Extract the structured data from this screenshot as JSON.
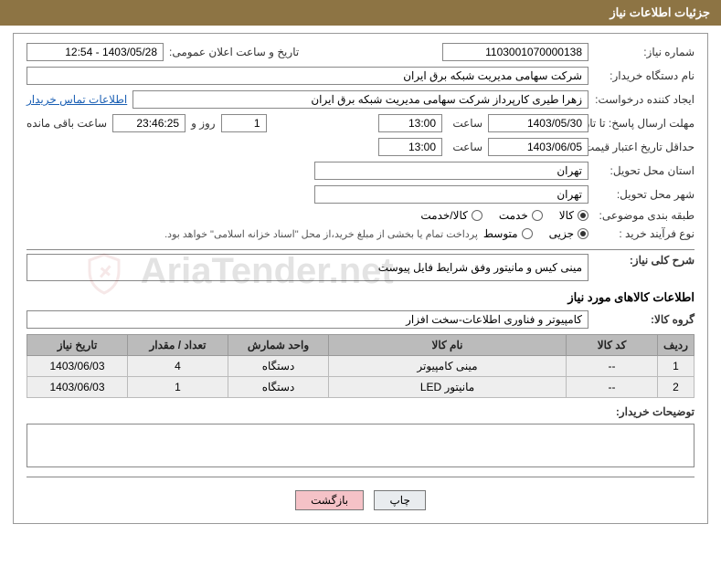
{
  "header": {
    "title": "جزئیات اطلاعات نیاز"
  },
  "need": {
    "number_label": "شماره نیاز:",
    "number": "1103001070000138",
    "announce_label": "تاریخ و ساعت اعلان عمومی:",
    "announce_value": "1403/05/28 - 12:54"
  },
  "buyer": {
    "org_label": "نام دستگاه خریدار:",
    "org_value": "شرکت سهامی مدیریت شبکه برق ایران",
    "requester_label": "ایجاد کننده درخواست:",
    "requester_value": "زهرا طیری کارپرداز شرکت سهامی مدیریت شبکه برق ایران",
    "contact_link": "اطلاعات تماس خریدار"
  },
  "deadlines": {
    "reply_label": "مهلت ارسال پاسخ:",
    "until_label": "تا تاریخ:",
    "reply_date": "1403/05/30",
    "time_label": "ساعت",
    "reply_time": "13:00",
    "days": "1",
    "days_label": "روز و",
    "countdown": "23:46:25",
    "remain_label": "ساعت باقی مانده",
    "min_valid_label": "حداقل تاریخ اعتبار قیمت:",
    "min_valid_date": "1403/06/05",
    "min_valid_time": "13:00"
  },
  "location": {
    "province_label": "استان محل تحویل:",
    "province": "تهران",
    "city_label": "شهر محل تحویل:",
    "city": "تهران"
  },
  "classification": {
    "label": "طبقه بندی موضوعی:",
    "options": [
      {
        "text": "کالا",
        "selected": true
      },
      {
        "text": "خدمت",
        "selected": false
      },
      {
        "text": "کالا/خدمت",
        "selected": false
      }
    ]
  },
  "process": {
    "label": "نوع فرآیند خرید :",
    "options": [
      {
        "text": "جزیی",
        "selected": true
      },
      {
        "text": "متوسط",
        "selected": false
      }
    ],
    "note": "پرداخت تمام یا بخشی از مبلغ خرید،از محل \"اسناد خزانه اسلامی\" خواهد بود."
  },
  "desc": {
    "label": "شرح کلی نیاز:",
    "value": "مینی کیس و مانیتور وفق شرایط فایل پیوست"
  },
  "goods_section_title": "اطلاعات کالاهای مورد نیاز",
  "group": {
    "label": "گروه کالا:",
    "value": "کامپیوتر و فناوری اطلاعات-سخت افزار"
  },
  "table": {
    "headers": [
      "ردیف",
      "کد کالا",
      "نام کالا",
      "واحد شمارش",
      "تعداد / مقدار",
      "تاریخ نیاز"
    ],
    "rows": [
      [
        "1",
        "--",
        "مینی کامپیوتر",
        "دستگاه",
        "4",
        "1403/06/03"
      ],
      [
        "2",
        "--",
        "مانیتور LED",
        "دستگاه",
        "1",
        "1403/06/03"
      ]
    ]
  },
  "buyer_notes": {
    "label": "توضیحات خریدار:",
    "value": ""
  },
  "buttons": {
    "print": "چاپ",
    "back": "بازگشت"
  },
  "watermark": {
    "text": "AriaTender.net"
  }
}
